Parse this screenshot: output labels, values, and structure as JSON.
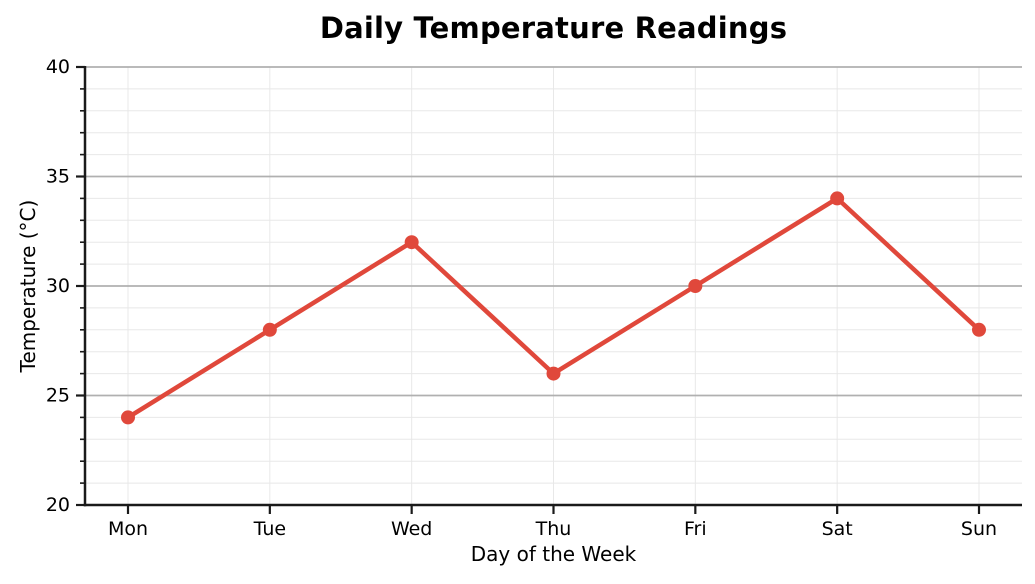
{
  "page": {
    "background_color": "#ffffff",
    "text_color": "#000000"
  },
  "chart_data": {
    "type": "line",
    "title": "Daily Temperature Readings",
    "xlabel": "Day of the Week",
    "ylabel": "Temperature (°C)",
    "categories": [
      "Mon",
      "Tue",
      "Wed",
      "Thu",
      "Fri",
      "Sat",
      "Sun"
    ],
    "series": [
      {
        "name": "Temperature",
        "values": [
          24,
          28,
          32,
          26,
          30,
          34,
          28
        ]
      }
    ],
    "ylim": [
      20,
      40
    ],
    "yticks": [
      20,
      25,
      30,
      35,
      40
    ],
    "minor_tick_step": 1,
    "legend": "none",
    "grid": {
      "show": true,
      "major_color": "#b0b0b0",
      "minor_color": "#e8e8e8"
    },
    "style": {
      "line_color": "#e0483b",
      "marker_color": "#e0483b",
      "line_width": 4.5,
      "marker_radius": 7,
      "spine_color": "#1a1a1a",
      "tick_label_size": 19
    }
  }
}
